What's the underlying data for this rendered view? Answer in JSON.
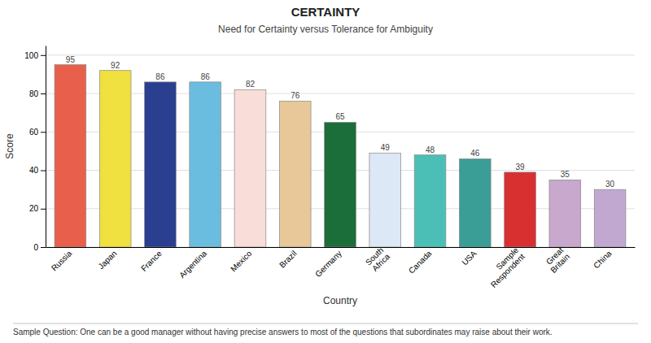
{
  "chart_data": {
    "type": "bar",
    "title": "CERTAINTY",
    "subtitle": "Need for Certainty versus Tolerance for Ambiguity",
    "x_label": "Country",
    "y_label": "Score",
    "categories": [
      "Russia",
      "Japan",
      "France",
      "Argentina",
      "Mexico",
      "Brazil",
      "Germany",
      "South\nAfrica",
      "Canada",
      "USA",
      "Sample\nRespondent",
      "Great\nBritain",
      "China"
    ],
    "values": [
      95,
      92,
      86,
      86,
      82,
      76,
      65,
      49,
      48,
      46,
      39,
      35,
      30
    ],
    "colors": [
      "#E8604C",
      "#F0E040",
      "#2A3F90",
      "#6BBDE0",
      "#F9DDD8",
      "#E8C898",
      "#1B6E3A",
      "#DCE8F5",
      "#4BBFB5",
      "#3A9E96",
      "#D83030",
      "#C8A8CC",
      "#C0A8D0"
    ],
    "ylim": [
      0,
      105
    ],
    "yticks": [
      0,
      20,
      40,
      60,
      80,
      100
    ],
    "grid": true,
    "data_labels": true,
    "annotations": [
      "Sample Question: One can be a good manager without having precise answers to most of the questions that subordinates may raise about their work."
    ]
  }
}
